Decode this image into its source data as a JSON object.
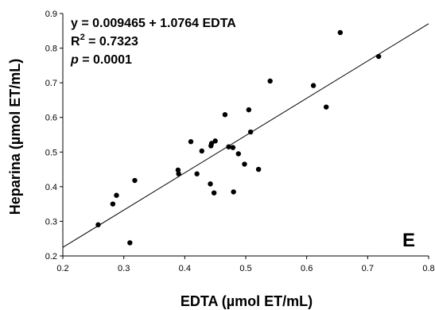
{
  "chart_data": {
    "type": "scatter",
    "xlabel": "EDTA (µmol ET/mL)",
    "ylabel": "Heparina (µmol ET/mL)",
    "xlim": [
      0.2,
      0.8
    ],
    "ylim": [
      0.2,
      0.9
    ],
    "x_ticks": [
      "0.2",
      "0.3",
      "0.4",
      "0.5",
      "0.6",
      "0.7",
      "0.8"
    ],
    "y_ticks": [
      "0.2",
      "0.3",
      "0.4",
      "0.5",
      "0.6",
      "0.7",
      "0.8",
      "0.9"
    ],
    "grid": false,
    "panel_label": "E",
    "annotations": {
      "equation": "y = 0.009465 + 1.0764 EDTA",
      "r2_prefix": "R",
      "r2_sup": "2",
      "r2_value": " = 0.7323",
      "p_symbol": "p",
      "p_value": " = 0.0001"
    },
    "regression": {
      "intercept": 0.009465,
      "slope": 1.0764
    },
    "points": [
      {
        "x": 0.258,
        "y": 0.29
      },
      {
        "x": 0.282,
        "y": 0.35
      },
      {
        "x": 0.288,
        "y": 0.375
      },
      {
        "x": 0.31,
        "y": 0.238
      },
      {
        "x": 0.318,
        "y": 0.418
      },
      {
        "x": 0.389,
        "y": 0.448
      },
      {
        "x": 0.39,
        "y": 0.437
      },
      {
        "x": 0.41,
        "y": 0.53
      },
      {
        "x": 0.42,
        "y": 0.437
      },
      {
        "x": 0.428,
        "y": 0.503
      },
      {
        "x": 0.442,
        "y": 0.408
      },
      {
        "x": 0.443,
        "y": 0.518
      },
      {
        "x": 0.444,
        "y": 0.525
      },
      {
        "x": 0.448,
        "y": 0.382
      },
      {
        "x": 0.45,
        "y": 0.532
      },
      {
        "x": 0.466,
        "y": 0.608
      },
      {
        "x": 0.472,
        "y": 0.515
      },
      {
        "x": 0.479,
        "y": 0.513
      },
      {
        "x": 0.48,
        "y": 0.385
      },
      {
        "x": 0.488,
        "y": 0.495
      },
      {
        "x": 0.498,
        "y": 0.465
      },
      {
        "x": 0.505,
        "y": 0.622
      },
      {
        "x": 0.508,
        "y": 0.558
      },
      {
        "x": 0.521,
        "y": 0.45
      },
      {
        "x": 0.54,
        "y": 0.705
      },
      {
        "x": 0.611,
        "y": 0.692
      },
      {
        "x": 0.632,
        "y": 0.63
      },
      {
        "x": 0.655,
        "y": 0.845
      },
      {
        "x": 0.718,
        "y": 0.776
      }
    ]
  }
}
